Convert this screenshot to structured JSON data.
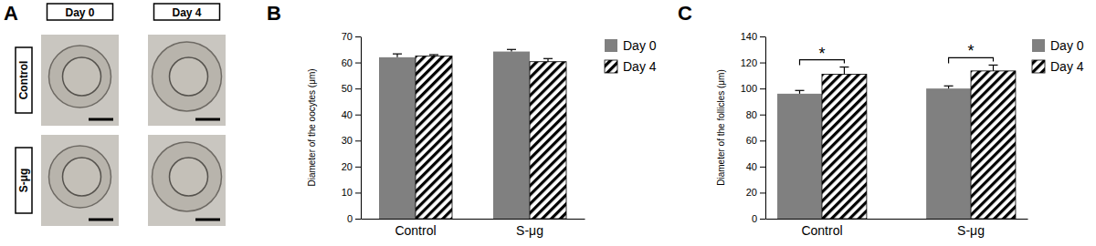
{
  "image_panel": {
    "title": "A",
    "columns": [
      "Day 0",
      "Day 4"
    ],
    "rows": [
      "Control",
      "S-μg"
    ]
  },
  "chart_data": [
    {
      "type": "bar",
      "title": "B",
      "y_label": "Diameter of the oocytes (μm)",
      "categories": [
        "Control",
        "S-μg"
      ],
      "series": [
        {
          "name": "Day 0",
          "color": "#808080",
          "values": [
            62,
            64.2
          ],
          "errors": [
            1.3,
            0.8
          ]
        },
        {
          "name": "Day 4",
          "color": "#000000",
          "line_style": "hatched",
          "values": [
            62.5,
            60.3
          ],
          "errors": [
            0.5,
            1.2
          ]
        }
      ],
      "ylim": [
        0,
        70
      ],
      "yticks": [
        0,
        10,
        20,
        30,
        40,
        50,
        60,
        70
      ],
      "grid": false,
      "legend": "right"
    },
    {
      "type": "bar",
      "title": "C",
      "y_label": "Diameter of the follicles (μm)",
      "categories": [
        "Control",
        "S-μg"
      ],
      "series": [
        {
          "name": "Day 0",
          "color": "#808080",
          "values": [
            96,
            100
          ],
          "errors": [
            2.5,
            2
          ]
        },
        {
          "name": "Day 4",
          "color": "#000000",
          "line_style": "hatched",
          "values": [
            111,
            113.5
          ],
          "errors": [
            5.5,
            4.5
          ]
        }
      ],
      "ylim": [
        0,
        140
      ],
      "yticks": [
        0,
        20,
        40,
        60,
        80,
        100,
        120,
        140
      ],
      "grid": false,
      "legend": "right",
      "annotations": [
        {
          "text": "*",
          "category": 0
        },
        {
          "text": "*",
          "category": 1
        }
      ]
    }
  ]
}
